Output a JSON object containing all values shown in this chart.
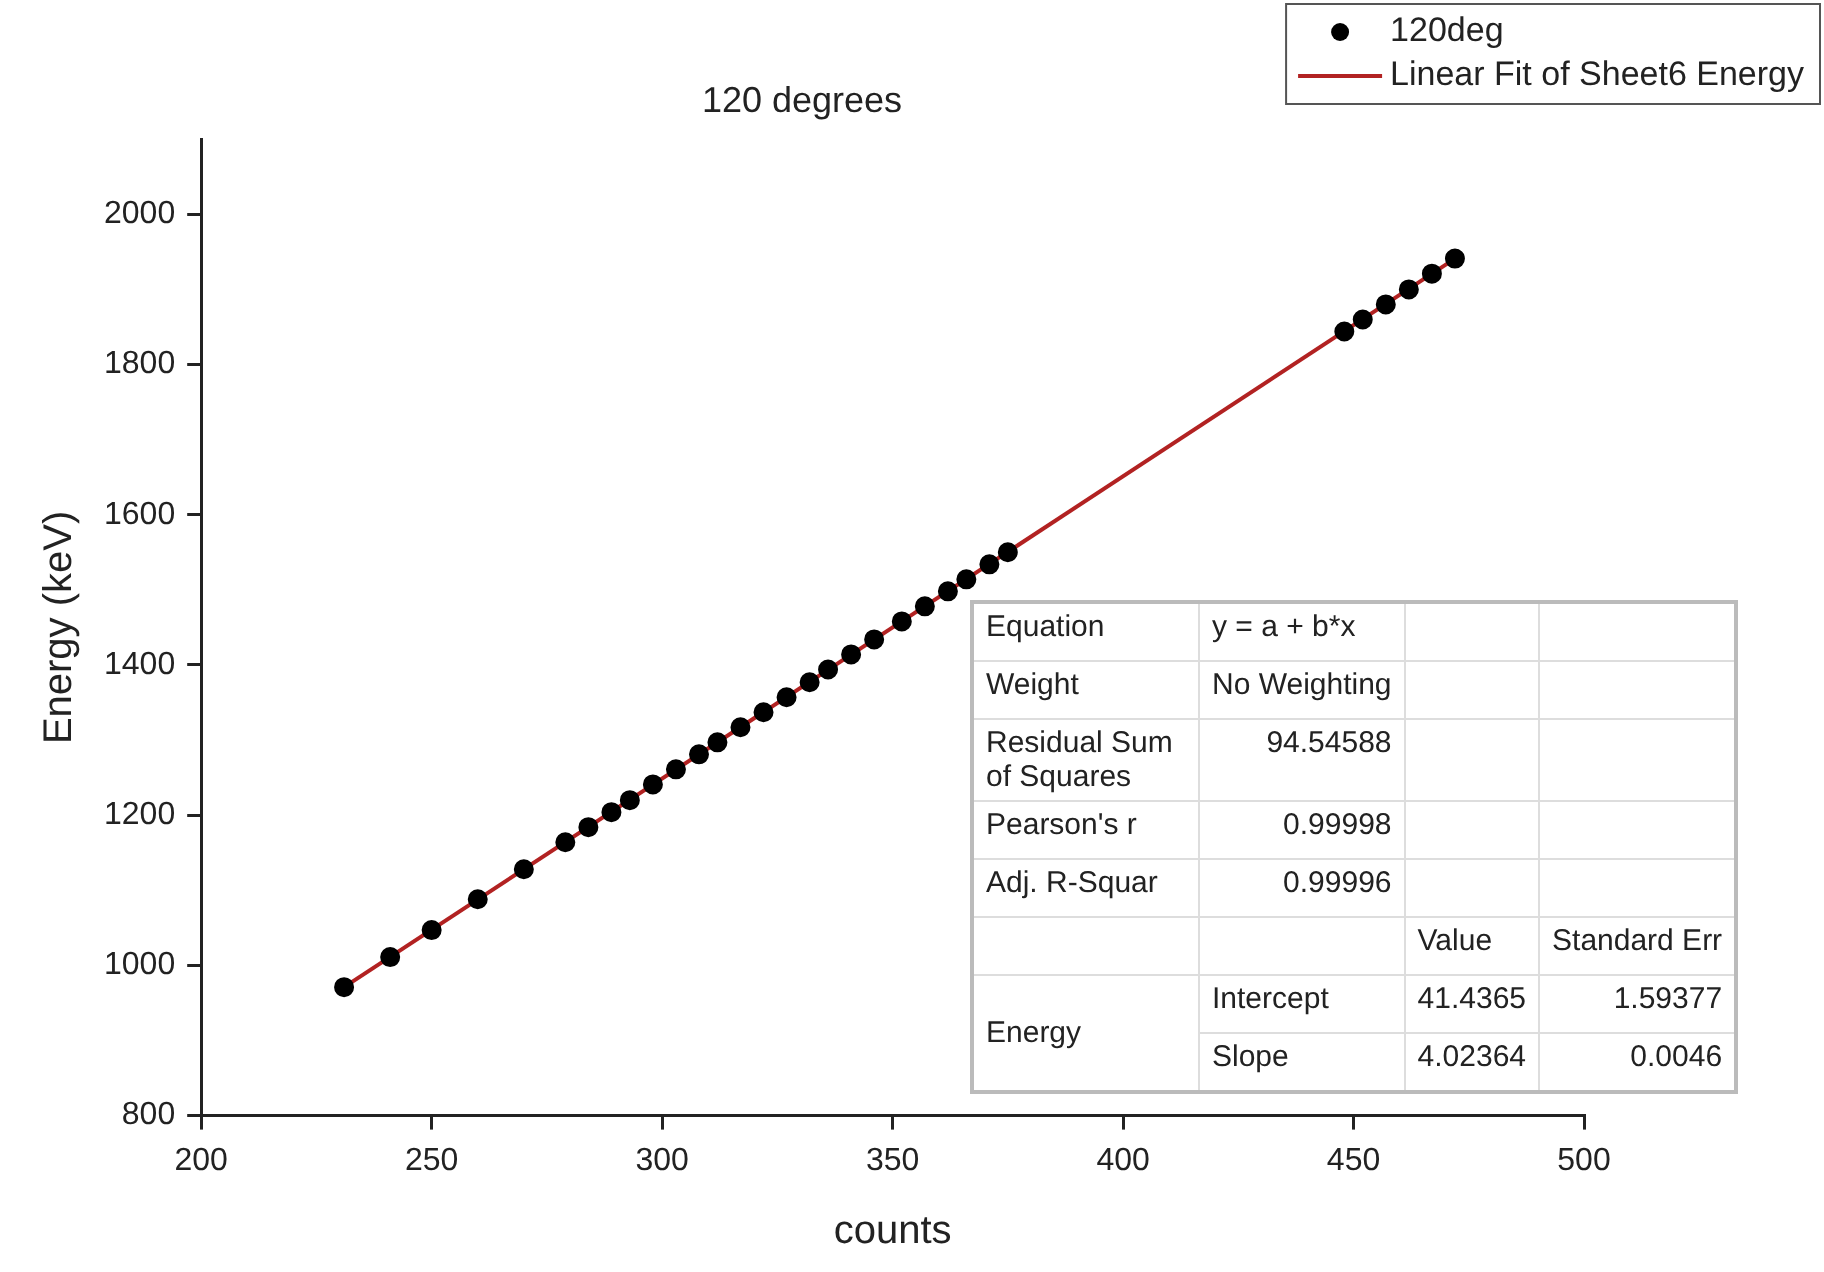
{
  "chart_data": {
    "type": "scatter",
    "title": "120 degrees",
    "xlabel": "counts",
    "ylabel": "Energy (keV)",
    "xlim": [
      200,
      500
    ],
    "xticks": [
      200,
      250,
      300,
      350,
      400,
      450,
      500
    ],
    "ylim": [
      800,
      2100
    ],
    "yticks": [
      800,
      1000,
      1200,
      1400,
      1600,
      1800,
      2000
    ],
    "grid": false,
    "legend": "top right",
    "series": [
      {
        "name": "120deg",
        "marker": "circle",
        "color": "#000000",
        "x": [
          231,
          241,
          250,
          260,
          270,
          279,
          284,
          289,
          293,
          298,
          303,
          308,
          312,
          317,
          322,
          327,
          332,
          336,
          341,
          346,
          352,
          357,
          362,
          366,
          371,
          375,
          448,
          452,
          457,
          462,
          467,
          472
        ],
        "values": [
          971,
          1011,
          1047,
          1088,
          1128,
          1164,
          1184,
          1204,
          1220,
          1241,
          1261,
          1281,
          1297,
          1317,
          1337,
          1357,
          1377,
          1394,
          1414,
          1434,
          1458,
          1478,
          1498,
          1514,
          1534,
          1550,
          1844,
          1860,
          1880,
          1900,
          1921,
          1941
        ]
      },
      {
        "name": "Linear Fit of Sheet6 Energy",
        "type": "line",
        "marker": "none",
        "color": "#b22222",
        "x": [
          231,
          472
        ],
        "values": [
          971,
          1941
        ]
      }
    ],
    "annotations": [
      "Equation",
      "y = a + b*x",
      "Weight",
      "No Weighting",
      "Residual Sum of Squares",
      "94.54588",
      "Pearson's r",
      "0.99998",
      "Adj. R-Squar",
      "0.99996",
      "Value",
      "Standard Err",
      "Energy",
      "Intercept",
      "41.4365",
      "1.59377",
      "Slope",
      "4.02364",
      "0.0046"
    ]
  }
}
